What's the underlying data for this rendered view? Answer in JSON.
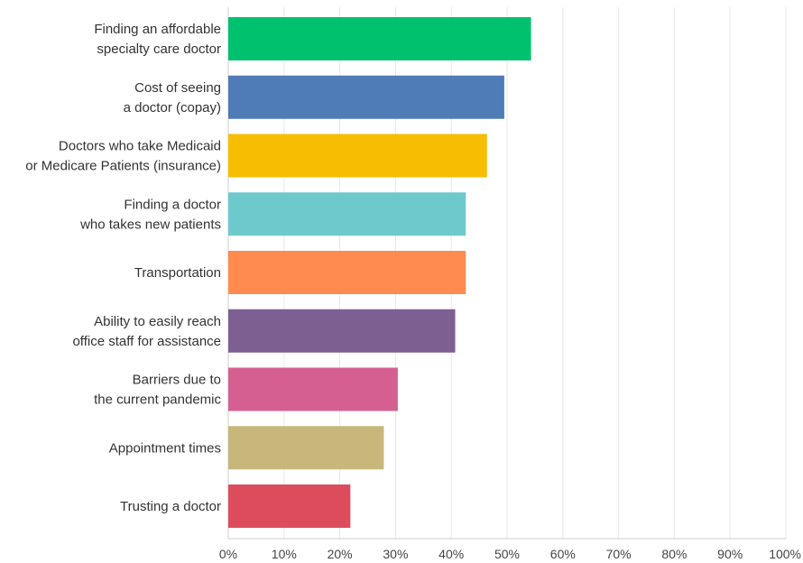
{
  "chart_data": {
    "type": "bar",
    "orientation": "horizontal",
    "categories": [
      [
        "Finding an affordable",
        "specialty care doctor"
      ],
      [
        "Cost of seeing",
        "a doctor (copay)"
      ],
      [
        "Doctors who take Medicaid",
        "or Medicare Patients (insurance)"
      ],
      [
        "Finding a doctor",
        "who takes new patients"
      ],
      [
        "Transportation"
      ],
      [
        "Ability to easily reach",
        "office staff for assistance"
      ],
      [
        "Barriers due to",
        "the current pandemic"
      ],
      [
        "Appointment times"
      ],
      [
        "Trusting a doctor"
      ]
    ],
    "values": [
      54.3,
      49.5,
      46.4,
      42.6,
      42.6,
      40.7,
      30.4,
      27.9,
      21.9
    ],
    "colors": [
      "#00c16e",
      "#4f7bb6",
      "#f7bd00",
      "#6dc9cc",
      "#ff8b4f",
      "#7d5f91",
      "#d45f90",
      "#c8b77a",
      "#dc4c5d"
    ],
    "xlim": [
      0,
      100
    ],
    "x_ticks": [
      "0%",
      "10%",
      "20%",
      "30%",
      "40%",
      "50%",
      "60%",
      "70%",
      "80%",
      "90%",
      "100%"
    ],
    "grid": true,
    "title": "",
    "xlabel": "",
    "ylabel": ""
  }
}
